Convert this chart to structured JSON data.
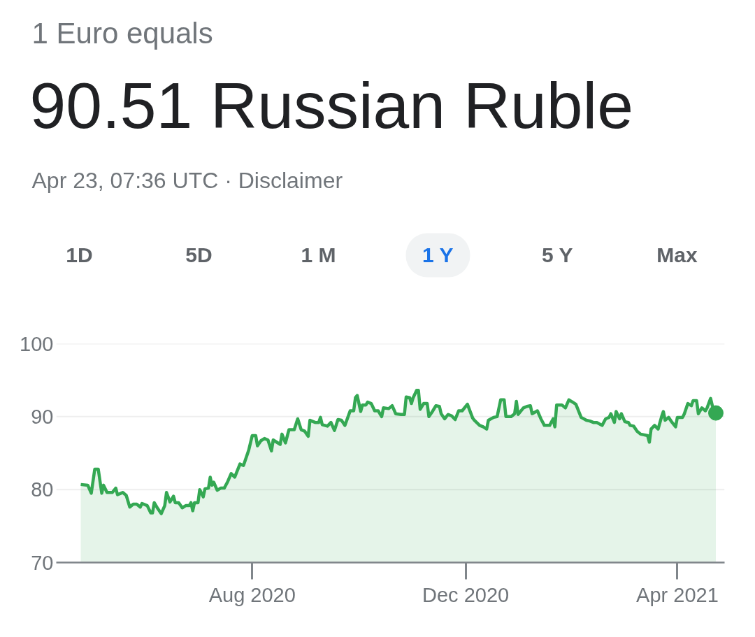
{
  "chart_data": {
    "type": "area",
    "title": "90.51 Russian Ruble",
    "subtitle": "Apr 23, 07:36 UTC · Disclaimer",
    "annotations": [
      "1 Euro equals",
      "1D",
      "5D",
      "1 M",
      "1 Y",
      "5 Y",
      "Max"
    ],
    "x": [
      "2020-04-25",
      "2020-04-29",
      "2020-05-01",
      "2020-05-03",
      "2020-05-05",
      "2020-05-07",
      "2020-05-08",
      "2020-05-10",
      "2020-05-13",
      "2020-05-15",
      "2020-05-16",
      "2020-05-19",
      "2020-05-21",
      "2020-05-23",
      "2020-05-25",
      "2020-05-27",
      "2020-05-29",
      "2020-05-30",
      "2020-06-02",
      "2020-06-04",
      "2020-06-05",
      "2020-06-06",
      "2020-06-08",
      "2020-06-10",
      "2020-06-12",
      "2020-06-13",
      "2020-06-15",
      "2020-06-17",
      "2020-06-18",
      "2020-06-20",
      "2020-06-22",
      "2020-06-24",
      "2020-06-26",
      "2020-06-27",
      "2020-06-28",
      "2020-06-29",
      "2020-07-01",
      "2020-07-02",
      "2020-07-04",
      "2020-07-05",
      "2020-07-07",
      "2020-07-08",
      "2020-07-09",
      "2020-07-10",
      "2020-07-12",
      "2020-07-14",
      "2020-07-16",
      "2020-07-18",
      "2020-07-20",
      "2020-07-22",
      "2020-07-25",
      "2020-07-27",
      "2020-07-30",
      "2020-08-01",
      "2020-08-03",
      "2020-08-04",
      "2020-08-06",
      "2020-08-08",
      "2020-08-10",
      "2020-08-12",
      "2020-08-13",
      "2020-08-17",
      "2020-08-18",
      "2020-08-20",
      "2020-08-22",
      "2020-08-25",
      "2020-08-27",
      "2020-08-29",
      "2020-08-31",
      "2020-09-02",
      "2020-09-03",
      "2020-09-06",
      "2020-09-08",
      "2020-09-09",
      "2020-09-10",
      "2020-09-13",
      "2020-09-15",
      "2020-09-17",
      "2020-09-19",
      "2020-09-21",
      "2020-09-23",
      "2020-09-26",
      "2020-09-28",
      "2020-09-29",
      "2020-09-30",
      "2020-10-02",
      "2020-10-03",
      "2020-10-05",
      "2020-10-06",
      "2020-10-08",
      "2020-10-10",
      "2020-10-12",
      "2020-10-14",
      "2020-10-15",
      "2020-10-18",
      "2020-10-20",
      "2020-10-22",
      "2020-10-25",
      "2020-10-27",
      "2020-10-28",
      "2020-10-30",
      "2020-10-31",
      "2020-11-01",
      "2020-11-03",
      "2020-11-04",
      "2020-11-05",
      "2020-11-07",
      "2020-11-09",
      "2020-11-10",
      "2020-11-12",
      "2020-11-14",
      "2020-11-16",
      "2020-11-17",
      "2020-11-19",
      "2020-11-21",
      "2020-11-23",
      "2020-11-25",
      "2020-11-27",
      "2020-11-29",
      "2020-12-02",
      "2020-12-05",
      "2020-12-06",
      "2020-12-09",
      "2020-12-11",
      "2020-12-13",
      "2020-12-14",
      "2020-12-17",
      "2020-12-19",
      "2020-12-21",
      "2020-12-23",
      "2020-12-24",
      "2020-12-27",
      "2020-12-29",
      "2020-12-30",
      "2020-12-31",
      "2021-01-03",
      "2021-01-05",
      "2021-01-07",
      "2021-01-08",
      "2021-01-11",
      "2021-01-13",
      "2021-01-15",
      "2021-01-18",
      "2021-01-20",
      "2021-01-21",
      "2021-01-22",
      "2021-01-25",
      "2021-01-27",
      "2021-01-29",
      "2021-01-31",
      "2021-02-02",
      "2021-02-04",
      "2021-02-05",
      "2021-02-08",
      "2021-02-10",
      "2021-02-12",
      "2021-02-14",
      "2021-02-17",
      "2021-02-19",
      "2021-02-21",
      "2021-02-22",
      "2021-02-24",
      "2021-02-25",
      "2021-02-27",
      "2021-02-28",
      "2021-03-02",
      "2021-03-04",
      "2021-03-05",
      "2021-03-07",
      "2021-03-09",
      "2021-03-11",
      "2021-03-13",
      "2021-03-15",
      "2021-03-16",
      "2021-03-17",
      "2021-03-19",
      "2021-03-21",
      "2021-03-23",
      "2021-03-24",
      "2021-03-25",
      "2021-03-27",
      "2021-03-29",
      "2021-03-31",
      "2021-04-01",
      "2021-04-04",
      "2021-04-05",
      "2021-04-07",
      "2021-04-09",
      "2021-04-10",
      "2021-04-12",
      "2021-04-13",
      "2021-04-15",
      "2021-04-17",
      "2021-04-18",
      "2021-04-20",
      "2021-04-21",
      "2021-04-23"
    ],
    "series": [
      {
        "color": "#34a853",
        "values": [
          80.7,
          80.6,
          79.5,
          82.8,
          82.8,
          79.5,
          80.6,
          79.6,
          79.6,
          80.2,
          79.3,
          79.6,
          79.2,
          77.6,
          78.0,
          78.0,
          77.6,
          78.1,
          77.8,
          76.8,
          76.8,
          78.2,
          77.4,
          76.7,
          77.8,
          79.6,
          78.3,
          79.1,
          78.2,
          78.2,
          77.5,
          77.8,
          77.8,
          78.2,
          77.1,
          78.2,
          78.2,
          80.0,
          79.0,
          80.1,
          80.2,
          81.7,
          80.6,
          81.0,
          79.9,
          80.2,
          80.2,
          81.1,
          82.2,
          81.7,
          83.5,
          83.3,
          85.4,
          87.4,
          87.4,
          86.0,
          86.7,
          87.0,
          86.8,
          85.3,
          86.8,
          86.2,
          87.6,
          86.4,
          88.2,
          88.2,
          89.7,
          88.2,
          88.0,
          87.3,
          89.5,
          89.2,
          89.2,
          89.9,
          88.9,
          88.7,
          89.2,
          88.1,
          89.6,
          89.5,
          88.8,
          90.8,
          90.8,
          92.6,
          92.9,
          90.7,
          91.6,
          91.6,
          92.0,
          91.8,
          90.8,
          90.8,
          90.0,
          91.2,
          91.1,
          91.5,
          90.4,
          90.3,
          90.3,
          92.7,
          92.6,
          91.8,
          92.6,
          93.6,
          93.6,
          91.0,
          91.8,
          91.8,
          90.0,
          90.7,
          91.5,
          91.4,
          90.4,
          89.7,
          90.3,
          90.1,
          89.6,
          90.8,
          90.8,
          91.7,
          89.8,
          89.5,
          88.8,
          88.6,
          88.3,
          89.5,
          89.9,
          90.0,
          92.3,
          92.3,
          90.0,
          90.0,
          90.4,
          92.1,
          90.3,
          91.2,
          91.4,
          91.5,
          90.4,
          90.8,
          89.7,
          88.8,
          88.8,
          89.7,
          88.6,
          91.6,
          91.6,
          91.2,
          92.3,
          92.0,
          91.7,
          90.5,
          89.9,
          89.5,
          89.4,
          89.2,
          89.2,
          88.8,
          89.7,
          89.9,
          90.4,
          89.2,
          90.7,
          89.7,
          90.4,
          89.3,
          89.2,
          88.8,
          88.7,
          88.0,
          87.6,
          87.5,
          87.4,
          86.5,
          88.3,
          88.8,
          88.3,
          90.0,
          90.7,
          89.5,
          89.9,
          89.2,
          88.6,
          89.9,
          89.9,
          90.4,
          91.8,
          91.5,
          92.2,
          92.2,
          90.4,
          91.2,
          90.8,
          91.2,
          92.5,
          91.5,
          90.5
        ]
      },
      {
        "type": "scatter",
        "color": "#34a853",
        "marker": "circle",
        "x": [
          "2021-04-23"
        ],
        "values": [
          90.5
        ]
      }
    ],
    "xlim": [
      "2020-04-11",
      "2021-04-28"
    ],
    "xticks": [
      {
        "value": "2020-08-01",
        "label": "Aug 2020"
      },
      {
        "value": "2020-12-01",
        "label": "Dec 2020"
      },
      {
        "value": "2021-04-01",
        "label": "Apr 2021"
      }
    ],
    "ylim": [
      70,
      100
    ],
    "yticks": [
      70,
      80,
      90,
      100
    ],
    "grid": "y"
  }
}
